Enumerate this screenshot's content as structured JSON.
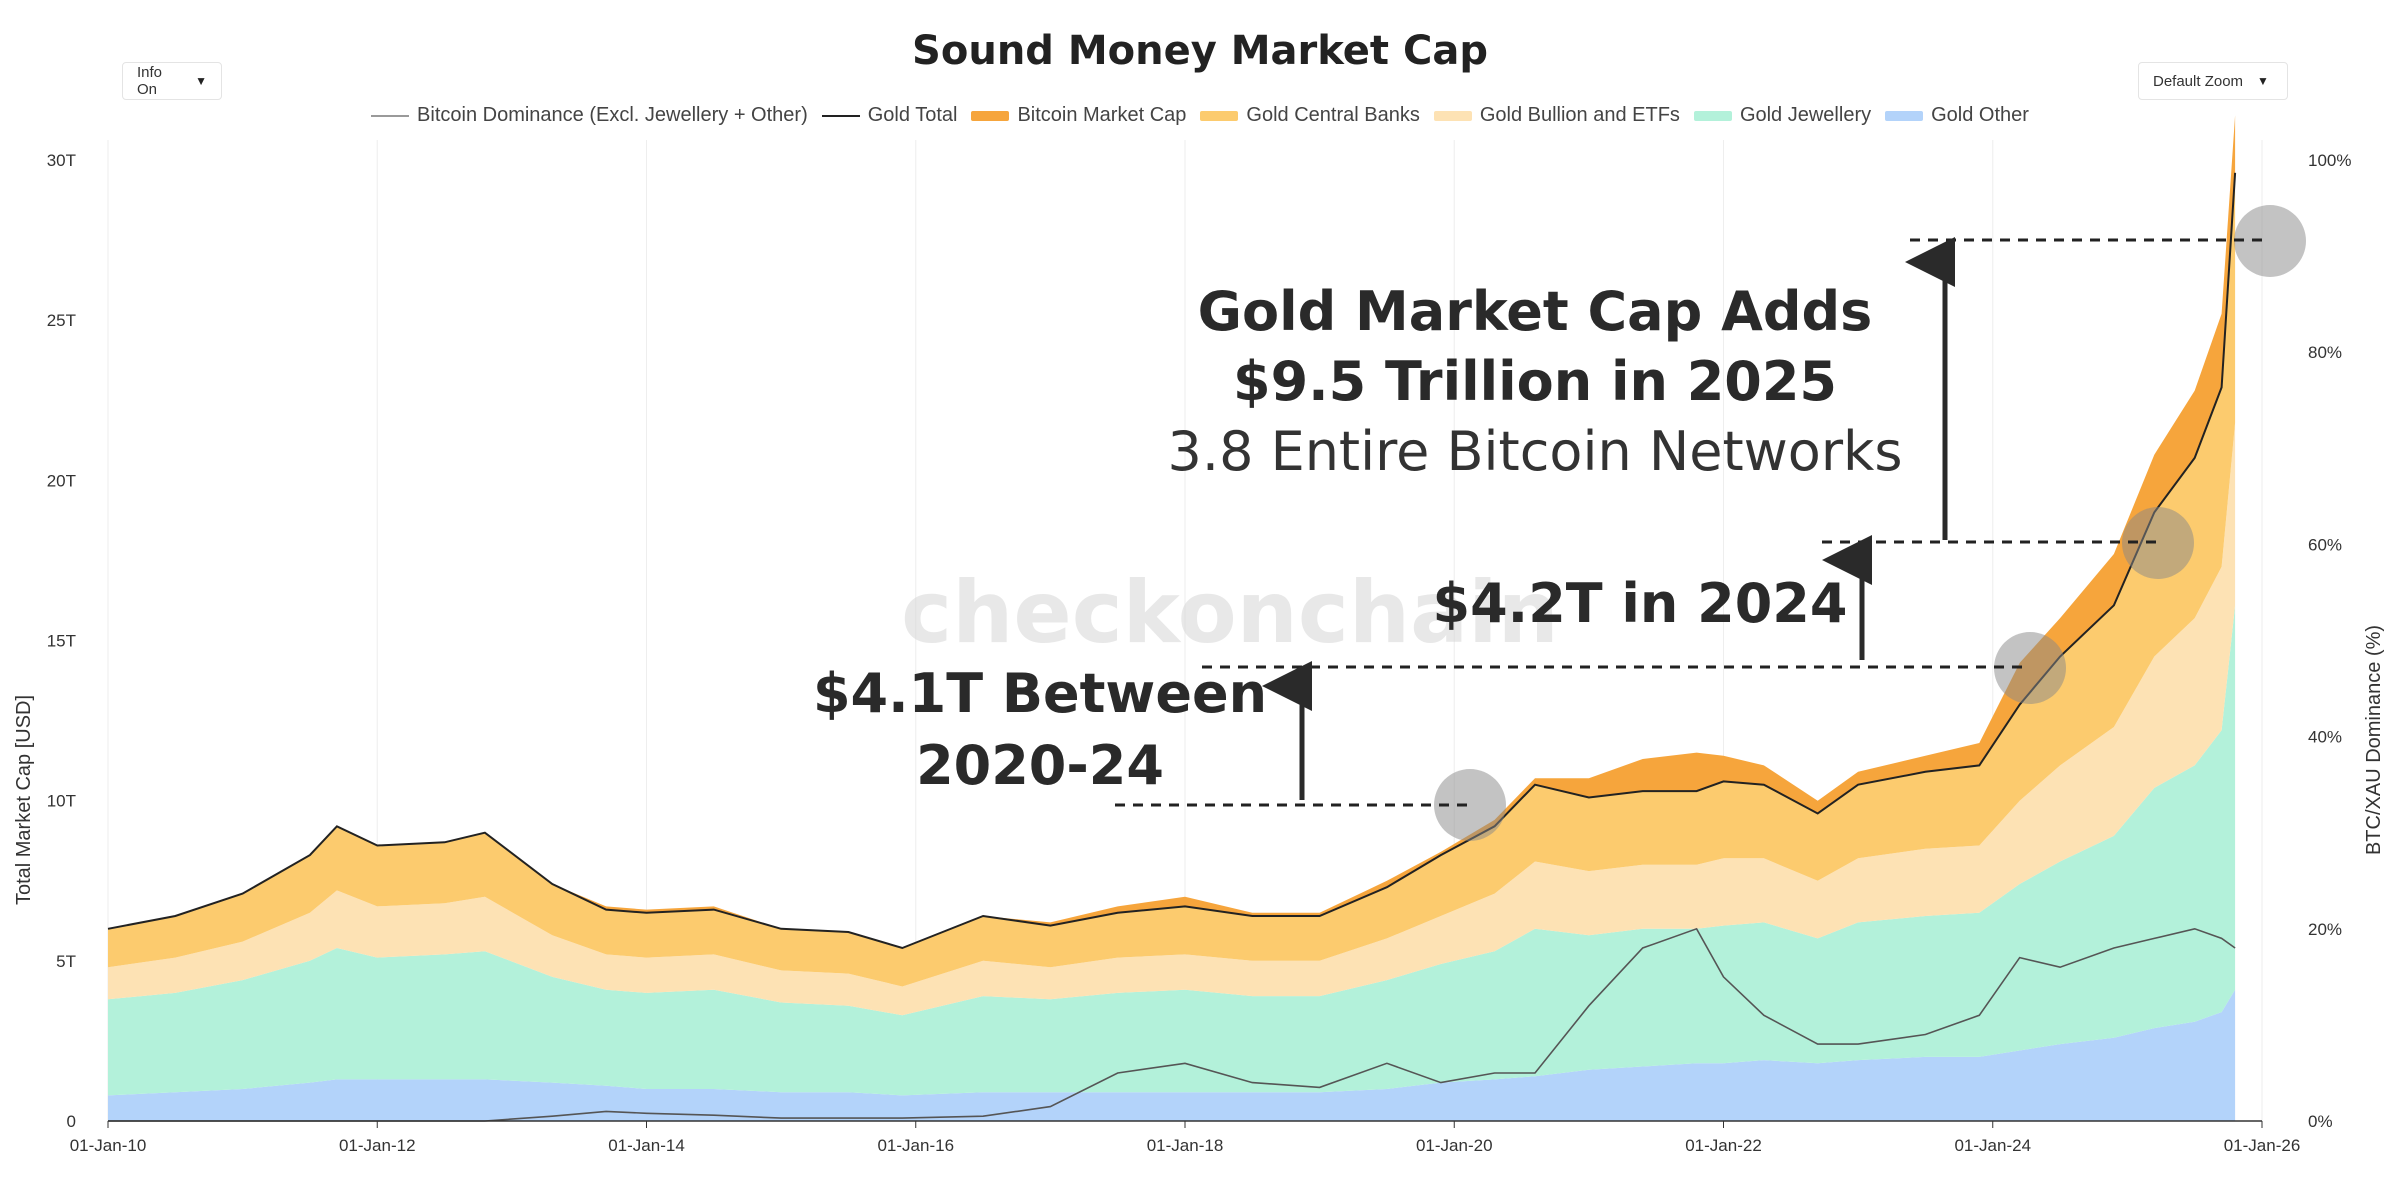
{
  "header": {
    "info_label": "Info On",
    "zoom_label": "Default Zoom"
  },
  "legend": [
    {
      "label": "Bitcoin Dominance (Excl. Jewellery + Other)",
      "kind": "line",
      "color": "#9a9a9a"
    },
    {
      "label": "Gold Total",
      "kind": "line",
      "color": "#222222"
    },
    {
      "label": "Bitcoin Market Cap",
      "kind": "area",
      "color": "#f6a53c"
    },
    {
      "label": "Gold Central Banks",
      "kind": "area",
      "color": "#fccb6e"
    },
    {
      "label": "Gold Bullion and ETFs",
      "kind": "area",
      "color": "#fde2b4"
    },
    {
      "label": "Gold Jewellery",
      "kind": "area",
      "color": "#b3f1da"
    },
    {
      "label": "Gold Other",
      "kind": "area",
      "color": "#b3d3fa"
    }
  ],
  "watermark": "checkonchain",
  "annotations": {
    "a2025_line1": "Gold Market Cap Adds",
    "a2025_line2": "$9.5 Trillion in 2025",
    "a2025_line3": "3.8 Entire Bitcoin Networks",
    "a2024": "$4.2T in 2024",
    "a2020_line1": "$4.1T Between",
    "a2020_line2": "2020-24"
  },
  "chart_data": {
    "type": "area",
    "title": "Sound Money Market Cap",
    "ylabel": "Total Market Cap [USD]",
    "y2label": "BTC/XAU Dominance (%)",
    "xlabel": "",
    "x_range": [
      2010.0,
      2026.0
    ],
    "ylim": [
      0,
      30
    ],
    "y2lim": [
      0,
      100
    ],
    "x_ticks": [
      {
        "year": 2010,
        "label": "01-Jan-10"
      },
      {
        "year": 2012,
        "label": "01-Jan-12"
      },
      {
        "year": 2014,
        "label": "01-Jan-14"
      },
      {
        "year": 2016,
        "label": "01-Jan-16"
      },
      {
        "year": 2018,
        "label": "01-Jan-18"
      },
      {
        "year": 2020,
        "label": "01-Jan-20"
      },
      {
        "year": 2022,
        "label": "01-Jan-22"
      },
      {
        "year": 2024,
        "label": "01-Jan-24"
      },
      {
        "year": 2026,
        "label": "01-Jan-26"
      }
    ],
    "y_ticks": [
      {
        "value": 0,
        "label": "0"
      },
      {
        "value": 5,
        "label": "5T"
      },
      {
        "value": 10,
        "label": "10T"
      },
      {
        "value": 15,
        "label": "15T"
      },
      {
        "value": 20,
        "label": "20T"
      },
      {
        "value": 25,
        "label": "25T"
      },
      {
        "value": 30,
        "label": "30T"
      }
    ],
    "y2_ticks": [
      {
        "value": 0,
        "label": "0%"
      },
      {
        "value": 20,
        "label": "20%"
      },
      {
        "value": 40,
        "label": "40%"
      },
      {
        "value": 60,
        "label": "60%"
      },
      {
        "value": 80,
        "label": "80%"
      },
      {
        "value": 100,
        "label": "100%"
      }
    ],
    "x": [
      2010.0,
      2010.5,
      2011.0,
      2011.5,
      2011.7,
      2012.0,
      2012.5,
      2012.8,
      2013.3,
      2013.7,
      2014.0,
      2014.5,
      2015.0,
      2015.5,
      2015.9,
      2016.5,
      2017.0,
      2017.5,
      2018.0,
      2018.5,
      2019.0,
      2019.5,
      2019.9,
      2020.3,
      2020.6,
      2021.0,
      2021.4,
      2021.8,
      2022.0,
      2022.3,
      2022.7,
      2023.0,
      2023.5,
      2023.9,
      2024.2,
      2024.5,
      2024.9,
      2025.2,
      2025.5,
      2025.7,
      2025.8
    ],
    "series": [
      {
        "name": "Gold Other",
        "color": "#b3d3fa",
        "values": [
          0.8,
          0.9,
          1.0,
          1.2,
          1.3,
          1.3,
          1.3,
          1.3,
          1.2,
          1.1,
          1.0,
          1.0,
          0.9,
          0.9,
          0.8,
          0.9,
          0.9,
          0.9,
          0.9,
          0.9,
          0.9,
          1.0,
          1.2,
          1.3,
          1.4,
          1.6,
          1.7,
          1.8,
          1.8,
          1.9,
          1.8,
          1.9,
          2.0,
          2.0,
          2.2,
          2.4,
          2.6,
          2.9,
          3.1,
          3.4,
          4.1
        ]
      },
      {
        "name": "Gold Jewellery",
        "color": "#b3f1da",
        "values": [
          3.0,
          3.1,
          3.4,
          3.8,
          4.1,
          3.8,
          3.9,
          4.0,
          3.3,
          3.0,
          3.0,
          3.1,
          2.8,
          2.7,
          2.5,
          3.0,
          2.9,
          3.1,
          3.2,
          3.0,
          3.0,
          3.4,
          3.7,
          4.0,
          4.6,
          4.2,
          4.3,
          4.2,
          4.3,
          4.3,
          3.9,
          4.3,
          4.4,
          4.5,
          5.2,
          5.7,
          6.3,
          7.5,
          8.0,
          8.8,
          12.0
        ]
      },
      {
        "name": "Gold Bullion and ETFs",
        "color": "#fde2b4",
        "values": [
          1.0,
          1.1,
          1.2,
          1.5,
          1.8,
          1.6,
          1.6,
          1.7,
          1.3,
          1.1,
          1.1,
          1.1,
          1.0,
          1.0,
          0.9,
          1.1,
          1.0,
          1.1,
          1.1,
          1.1,
          1.1,
          1.3,
          1.5,
          1.8,
          2.1,
          2.0,
          2.0,
          2.0,
          2.1,
          2.0,
          1.8,
          2.0,
          2.1,
          2.1,
          2.6,
          3.0,
          3.4,
          4.1,
          4.6,
          5.1,
          5.7
        ]
      },
      {
        "name": "Gold Central Banks",
        "color": "#fccb6e",
        "values": [
          1.2,
          1.3,
          1.5,
          1.8,
          2.0,
          1.9,
          1.9,
          2.0,
          1.6,
          1.4,
          1.4,
          1.4,
          1.3,
          1.3,
          1.2,
          1.4,
          1.3,
          1.4,
          1.5,
          1.4,
          1.4,
          1.6,
          1.9,
          2.1,
          2.4,
          2.3,
          2.3,
          2.3,
          2.4,
          2.3,
          2.1,
          2.3,
          2.4,
          2.5,
          3.0,
          3.4,
          3.8,
          4.5,
          5.0,
          5.6,
          7.8
        ]
      },
      {
        "name": "Bitcoin Market Cap",
        "color": "#f6a53c",
        "values": [
          0.0,
          0.0,
          0.0,
          0.0,
          0.0,
          0.0,
          0.0,
          0.0,
          0.0,
          0.1,
          0.1,
          0.1,
          0.0,
          0.0,
          0.0,
          0.0,
          0.1,
          0.2,
          0.3,
          0.1,
          0.1,
          0.2,
          0.1,
          0.2,
          0.2,
          0.6,
          1.0,
          1.2,
          0.8,
          0.6,
          0.4,
          0.4,
          0.5,
          0.7,
          1.3,
          1.2,
          1.6,
          1.8,
          2.1,
          2.3,
          1.8
        ]
      }
    ],
    "gold_total": [
      6.0,
      6.4,
      7.1,
      8.3,
      9.2,
      8.6,
      8.7,
      9.0,
      7.4,
      6.6,
      6.5,
      6.6,
      6.0,
      5.9,
      5.4,
      6.4,
      6.1,
      6.5,
      6.7,
      6.4,
      6.4,
      7.3,
      8.3,
      9.2,
      10.5,
      10.1,
      10.3,
      10.3,
      10.6,
      10.5,
      9.6,
      10.5,
      10.9,
      11.1,
      13.0,
      14.5,
      16.1,
      19.0,
      20.7,
      22.9,
      29.6
    ],
    "btc_dominance_pct": [
      0.0,
      0.0,
      0.0,
      0.0,
      0.0,
      0.0,
      0.0,
      0.0,
      0.5,
      1.0,
      0.8,
      0.6,
      0.3,
      0.3,
      0.3,
      0.5,
      1.5,
      5.0,
      6.0,
      4.0,
      3.5,
      6.0,
      4.0,
      5.0,
      5.0,
      12.0,
      18.0,
      20.0,
      15.0,
      11.0,
      8.0,
      8.0,
      9.0,
      11.0,
      17.0,
      16.0,
      18.0,
      19.0,
      20.0,
      19.0,
      18.0
    ]
  }
}
